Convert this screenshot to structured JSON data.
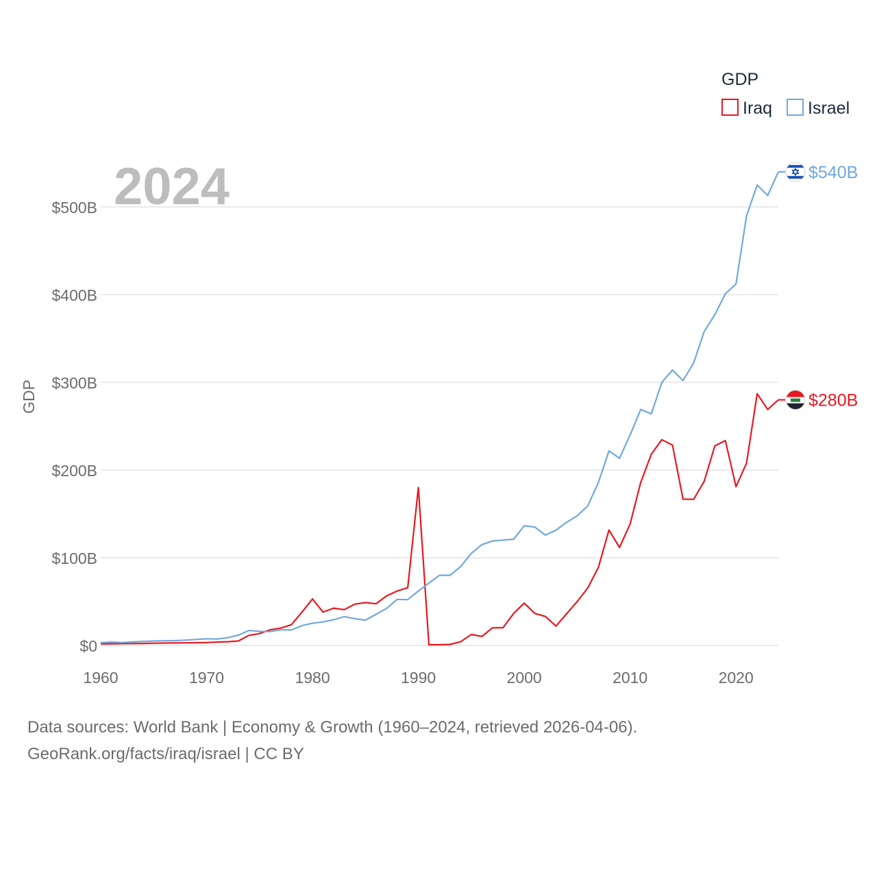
{
  "chart_data": {
    "type": "line",
    "title": "GDP",
    "year_label": "2024",
    "ylabel": "GDP",
    "xlim": [
      1960,
      2024
    ],
    "ylim": [
      0,
      540
    ],
    "x_ticks": [
      1960,
      1970,
      1980,
      1990,
      2000,
      2010,
      2020
    ],
    "x_tick_labels": [
      "1960",
      "1970",
      "1980",
      "1990",
      "2000",
      "2010",
      "2020"
    ],
    "y_ticks": [
      0,
      100,
      200,
      300,
      400,
      500
    ],
    "y_tick_labels": [
      "$0",
      "$100B",
      "$200B",
      "$300B",
      "$400B",
      "$500B"
    ],
    "y_unit": "billions USD",
    "legend_title": "GDP",
    "legend_position": "top-right",
    "grid": true,
    "x": [
      1960,
      1961,
      1962,
      1963,
      1964,
      1965,
      1966,
      1967,
      1968,
      1969,
      1970,
      1971,
      1972,
      1973,
      1974,
      1975,
      1976,
      1977,
      1978,
      1979,
      1980,
      1981,
      1982,
      1983,
      1984,
      1985,
      1986,
      1987,
      1988,
      1989,
      1990,
      1991,
      1992,
      1993,
      1994,
      1995,
      1996,
      1997,
      1998,
      1999,
      2000,
      2001,
      2002,
      2003,
      2004,
      2005,
      2006,
      2007,
      2008,
      2009,
      2010,
      2011,
      2012,
      2013,
      2014,
      2015,
      2016,
      2017,
      2018,
      2019,
      2020,
      2021,
      2022,
      2023,
      2024
    ],
    "series": [
      {
        "name": "Iraq",
        "color": "#e8171f",
        "end_label": "$280B",
        "flag_icon": "iraq-flag-icon",
        "values": [
          1.7,
          1.9,
          2.0,
          2.1,
          2.3,
          2.5,
          2.7,
          2.8,
          3.0,
          3.1,
          3.3,
          3.8,
          4.2,
          5.1,
          11.5,
          13.5,
          17.8,
          19.8,
          23.5,
          37.8,
          53.0,
          38.0,
          42.5,
          40.8,
          47.0,
          48.8,
          47.5,
          56.5,
          62.0,
          65.8,
          180.0,
          0.8,
          0.8,
          1.2,
          4.2,
          12.5,
          10.2,
          20.0,
          20.2,
          36.5,
          48.2,
          36.5,
          33.0,
          22.0,
          36.0,
          50.0,
          65.5,
          88.8,
          131.6,
          111.7,
          138.5,
          185.8,
          218.0,
          234.6,
          228.4,
          166.8,
          166.6,
          187.2,
          227.4,
          233.6,
          180.9,
          207.9,
          287.0,
          269.0,
          280.0
        ]
      },
      {
        "name": "Israel",
        "color": "#6fa8dc",
        "end_label": "$540B",
        "flag_icon": "israel-flag-icon",
        "values": [
          3.3,
          3.8,
          3.3,
          4.0,
          4.6,
          5.0,
          5.3,
          5.5,
          6.0,
          6.8,
          7.6,
          7.3,
          8.8,
          11.7,
          17.0,
          16.0,
          15.8,
          17.8,
          17.6,
          22.5,
          25.3,
          26.8,
          29.3,
          32.8,
          30.5,
          28.8,
          35.5,
          42.2,
          52.5,
          52.2,
          62.0,
          71.0,
          80.0,
          80.0,
          90.0,
          105.0,
          114.9,
          119.1,
          120.1,
          121.2,
          136.5,
          134.9,
          125.8,
          131.4,
          140.3,
          147.8,
          159.0,
          185.6,
          221.8,
          213.4,
          240.0,
          269.0,
          264.0,
          300.0,
          314.0,
          302.0,
          322.0,
          358.0,
          377.0,
          401.0,
          412.0,
          490.0,
          525.0,
          513.0,
          540.0
        ]
      }
    ]
  },
  "footer": {
    "line1": "Data sources: World Bank | Economy & Growth (1960–2024, retrieved 2026-04-06).",
    "line2": "GeoRank.org/facts/iraq/israel | CC BY"
  }
}
